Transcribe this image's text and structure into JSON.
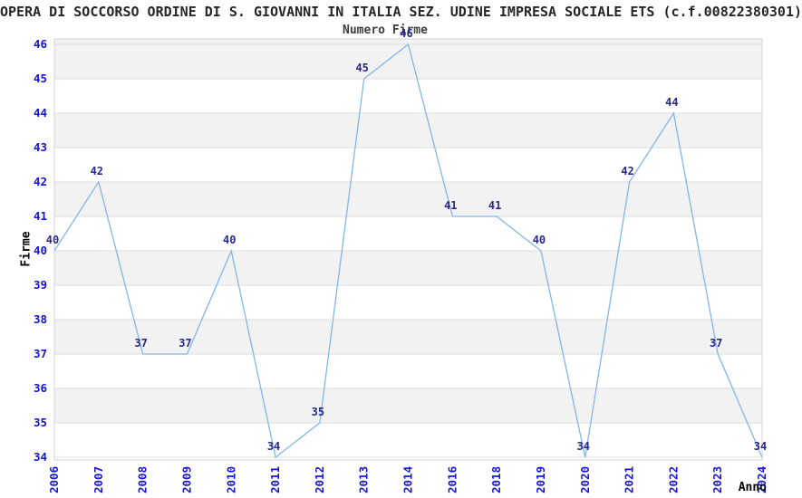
{
  "chart_data": {
    "type": "line",
    "suptitle": "OPERA DI SOCCORSO ORDINE DI S. GIOVANNI IN ITALIA SEZ. UDINE IMPRESA SOCIALE ETS (c.f.00822380301)",
    "title": "Numero Firme",
    "xlabel": "Anno",
    "ylabel": "Firme",
    "categories": [
      "2006",
      "2007",
      "2008",
      "2009",
      "2010",
      "2011",
      "2012",
      "2013",
      "2014",
      "2016",
      "2018",
      "2019",
      "2020",
      "2021",
      "2022",
      "2023",
      "2024"
    ],
    "values": [
      40,
      42,
      37,
      37,
      40,
      34,
      35,
      45,
      46,
      41,
      41,
      40,
      34,
      42,
      44,
      37,
      34
    ],
    "ylim": [
      34,
      46
    ],
    "ytick_step": 1,
    "grid": true,
    "legend": "none",
    "band_fill": "alternating-horizontal",
    "data_labels": true,
    "colors": {
      "line": "#82b6e8",
      "tick_label": "#1515d6",
      "data_label": "#28288c",
      "band": "#f2f2f2",
      "gridline": "#dcdcdc",
      "border": "#d4d4d4",
      "suptitle": "#262626",
      "subtitle": "#3c3c3c",
      "axis_title": "#000000",
      "background": "#ffffff"
    }
  }
}
